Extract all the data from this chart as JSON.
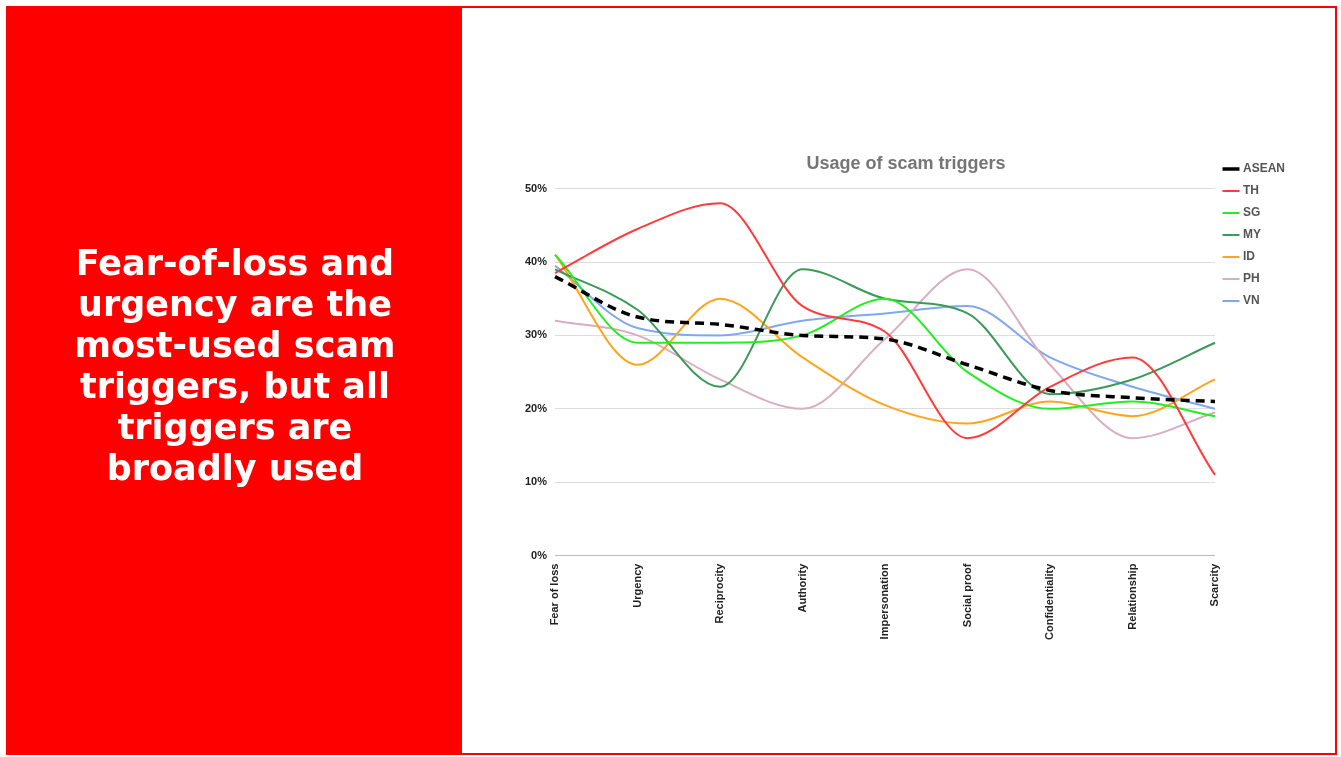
{
  "chart_data": {
    "type": "line",
    "title": "Usage of scam triggers",
    "annotations": [
      "Fear-of-loss and urgency are the most-used scam triggers, but all triggers are broadly used"
    ],
    "categories": [
      "Fear of loss",
      "Urgency",
      "Reciprocity",
      "Authority",
      "Impersonation",
      "Social proof",
      "Confidentiality",
      "Relationship",
      "Scarcity"
    ],
    "series": [
      {
        "name": "ASEAN",
        "color": "#000000",
        "line_style": "dashed",
        "values": [
          38,
          32.5,
          31.5,
          30,
          29.5,
          26,
          22.5,
          21.5,
          21
        ]
      },
      {
        "name": "TH",
        "color": "#ff3b3b",
        "values": [
          38.5,
          44.5,
          48,
          34,
          30.5,
          16,
          23,
          27,
          11
        ]
      },
      {
        "name": "SG",
        "color": "#22ee22",
        "values": [
          41,
          29,
          29,
          30,
          35,
          25,
          20,
          21,
          19
        ]
      },
      {
        "name": "MY",
        "color": "#3d9a56",
        "values": [
          39,
          33.5,
          23,
          39,
          35,
          33,
          22,
          24,
          29
        ]
      },
      {
        "name": "ID",
        "color": "#ffa41c",
        "values": [
          41,
          26,
          35,
          27,
          20.5,
          18,
          21,
          19,
          24
        ]
      },
      {
        "name": "PH",
        "color": "#d8aec0",
        "values": [
          32,
          30,
          24,
          20,
          29.5,
          39,
          26,
          16,
          19.5
        ]
      },
      {
        "name": "VN",
        "color": "#7fa8f0",
        "values": [
          39.5,
          31,
          30,
          32,
          33,
          34,
          27,
          23,
          20
        ]
      }
    ],
    "ylim": [
      0,
      50
    ],
    "yticks": [
      {
        "value": 0,
        "label": "0%"
      },
      {
        "value": 10,
        "label": "10%"
      },
      {
        "value": 20,
        "label": "20%"
      },
      {
        "value": 30,
        "label": "30%"
      },
      {
        "value": 40,
        "label": "40%"
      },
      {
        "value": 50,
        "label": "50%"
      }
    ],
    "grid": "y",
    "legend": "right",
    "marker": "none",
    "line_style": "solid"
  }
}
